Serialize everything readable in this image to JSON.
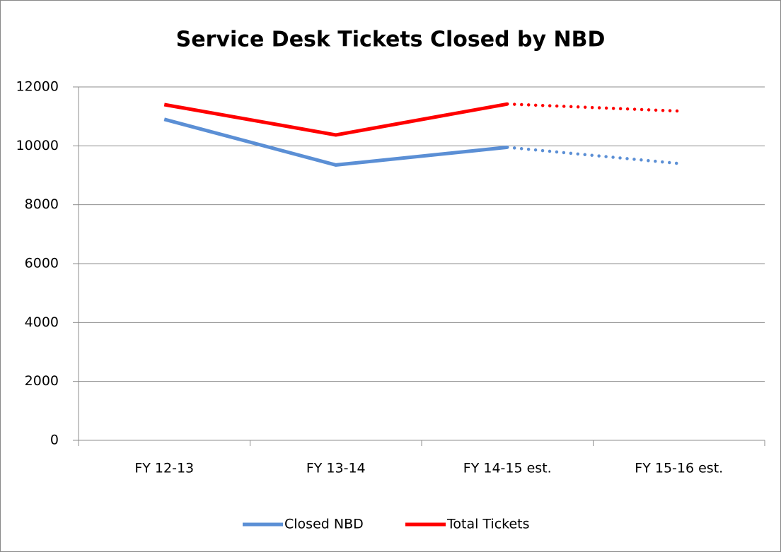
{
  "chart_data": {
    "type": "line",
    "title": "Service Desk Tickets Closed by NBD",
    "categories": [
      "FY 12-13",
      "FY 13-14",
      "FY 14-15 est.",
      "FY 15-16 est."
    ],
    "series": [
      {
        "name": "Closed NBD",
        "color": "#5b8fd5",
        "values": [
          10900,
          9350,
          9950,
          9400
        ]
      },
      {
        "name": "Total Tickets",
        "color": "#ff0000",
        "values": [
          11400,
          10370,
          11420,
          11180
        ]
      }
    ],
    "dotted_from": 2,
    "ylim": [
      0,
      12000
    ],
    "yticks": [
      0,
      2000,
      4000,
      6000,
      8000,
      10000,
      12000
    ],
    "grid": true,
    "legend": "bottom"
  }
}
